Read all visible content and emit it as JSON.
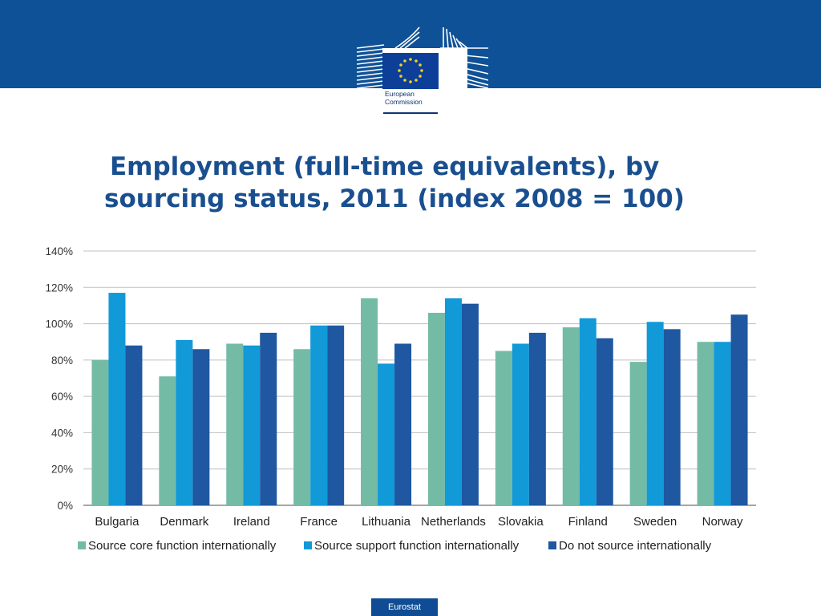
{
  "header": {
    "org_name_line1": "European",
    "org_name_line2": "Commission"
  },
  "title_line1": "Employment (full-time equivalents), by",
  "title_line2": "sourcing status, 2011 (index 2008 = 100)",
  "footer_label": "Eurostat",
  "colors": {
    "band": "#0f5196",
    "series": [
      "#74bba5",
      "#1199d8",
      "#1f57a1"
    ]
  },
  "chart_data": {
    "type": "bar",
    "categories": [
      "Bulgaria",
      "Denmark",
      "Ireland",
      "France",
      "Lithuania",
      "Netherlands",
      "Slovakia",
      "Finland",
      "Sweden",
      "Norway"
    ],
    "series": [
      {
        "name": "Source core function internationally",
        "values": [
          80,
          71,
          89,
          86,
          114,
          106,
          85,
          98,
          79,
          90
        ]
      },
      {
        "name": "Source support function internationally",
        "values": [
          117,
          91,
          88,
          99,
          78,
          114,
          89,
          103,
          101,
          90
        ]
      },
      {
        "name": "Do not source internationally",
        "values": [
          88,
          86,
          95,
          99,
          89,
          111,
          95,
          92,
          97,
          105
        ]
      }
    ],
    "ylim": [
      0,
      140
    ],
    "yticks": [
      "0%",
      "20%",
      "40%",
      "60%",
      "80%",
      "100%",
      "120%",
      "140%"
    ],
    "grid": true,
    "legend_position": "bottom",
    "xlabel": "",
    "ylabel": "",
    "title": ""
  }
}
